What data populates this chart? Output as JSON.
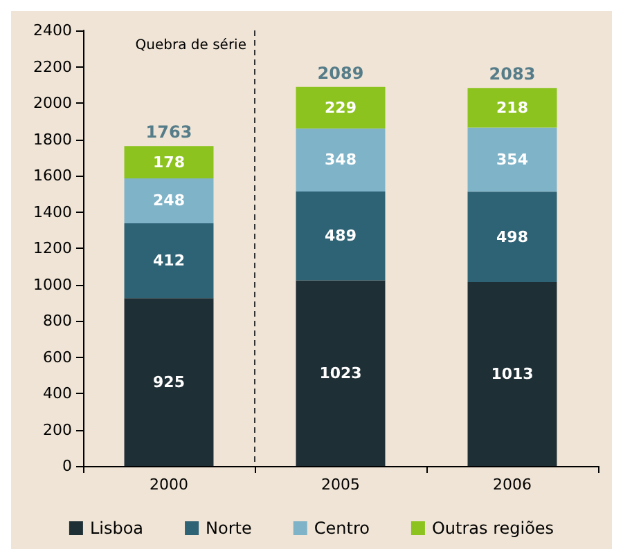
{
  "chart_data": {
    "type": "bar",
    "stacked": true,
    "categories": [
      "2000",
      "2005",
      "2006"
    ],
    "series": [
      {
        "name": "Lisboa",
        "color": "#1f2f36",
        "values": [
          925,
          1023,
          1013
        ]
      },
      {
        "name": "Norte",
        "color": "#2e6275",
        "values": [
          412,
          489,
          498
        ]
      },
      {
        "name": "Centro",
        "color": "#7fb3c8",
        "values": [
          248,
          348,
          354
        ]
      },
      {
        "name": "Outras regiões",
        "color": "#8cc31e",
        "values": [
          178,
          229,
          218
        ]
      }
    ],
    "totals": [
      "1763",
      "2089",
      "2083"
    ],
    "data_labels": true,
    "ylim": [
      0,
      2400
    ],
    "yticks": [
      0,
      200,
      400,
      600,
      800,
      1000,
      1200,
      1400,
      1600,
      1800,
      2000,
      2200,
      2400
    ],
    "annotations": [
      "Quebra de série"
    ],
    "legend": "bottom"
  }
}
